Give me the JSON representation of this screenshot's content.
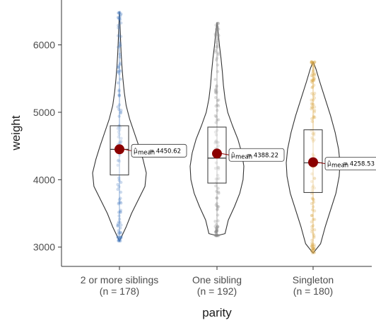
{
  "chart_data": {
    "type": "violin",
    "xlabel": "parity",
    "ylabel": "weight",
    "ylim": [
      2800,
      6600
    ],
    "yticks": [
      3000,
      4000,
      5000,
      6000
    ],
    "grid": false,
    "groups": [
      {
        "label": "2 or more siblings",
        "n_label": "(n = 178)",
        "color": "#4a7fc1",
        "min": 3090,
        "q1": 4070,
        "median": 4450,
        "q3": 4800,
        "max": 6490,
        "mean": 4450.62,
        "mean_label": "= 4450.62",
        "density": [
          [
            3090,
            0.0
          ],
          [
            3300,
            0.25
          ],
          [
            3500,
            0.45
          ],
          [
            3700,
            0.7
          ],
          [
            3900,
            0.95
          ],
          [
            4100,
            1.0
          ],
          [
            4300,
            0.88
          ],
          [
            4500,
            0.72
          ],
          [
            4700,
            0.55
          ],
          [
            4900,
            0.38
          ],
          [
            5100,
            0.25
          ],
          [
            5300,
            0.18
          ],
          [
            5500,
            0.13
          ],
          [
            5700,
            0.09
          ],
          [
            5900,
            0.06
          ],
          [
            6100,
            0.04
          ],
          [
            6300,
            0.02
          ],
          [
            6490,
            0.0
          ]
        ]
      },
      {
        "label": "One sibling",
        "n_label": "(n = 192)",
        "color": "#8a8a8a",
        "min": 3170,
        "q1": 3950,
        "median": 4320,
        "q3": 4780,
        "max": 6330,
        "mean": 4388.22,
        "mean_label": "= 4388.22",
        "density": [
          [
            3170,
            0.0
          ],
          [
            3200,
            0.3
          ],
          [
            3400,
            0.42
          ],
          [
            3600,
            0.65
          ],
          [
            3800,
            0.85
          ],
          [
            4000,
            0.97
          ],
          [
            4200,
            1.0
          ],
          [
            4400,
            0.92
          ],
          [
            4600,
            0.78
          ],
          [
            4800,
            0.58
          ],
          [
            5000,
            0.4
          ],
          [
            5200,
            0.3
          ],
          [
            5400,
            0.24
          ],
          [
            5600,
            0.2
          ],
          [
            5800,
            0.15
          ],
          [
            6000,
            0.09
          ],
          [
            6200,
            0.04
          ],
          [
            6330,
            0.0
          ]
        ]
      },
      {
        "label": "Singleton",
        "n_label": "(n = 180)",
        "color": "#d9a441",
        "min": 2910,
        "q1": 3810,
        "median": 4250,
        "q3": 4740,
        "max": 5750,
        "mean": 4258.53,
        "mean_label": "= 4258.53",
        "density": [
          [
            2910,
            0.0
          ],
          [
            3050,
            0.28
          ],
          [
            3300,
            0.45
          ],
          [
            3550,
            0.65
          ],
          [
            3800,
            0.85
          ],
          [
            4050,
            0.97
          ],
          [
            4250,
            1.0
          ],
          [
            4450,
            0.95
          ],
          [
            4700,
            0.82
          ],
          [
            4950,
            0.65
          ],
          [
            5200,
            0.45
          ],
          [
            5450,
            0.25
          ],
          [
            5650,
            0.1
          ],
          [
            5750,
            0.0
          ]
        ]
      }
    ]
  }
}
